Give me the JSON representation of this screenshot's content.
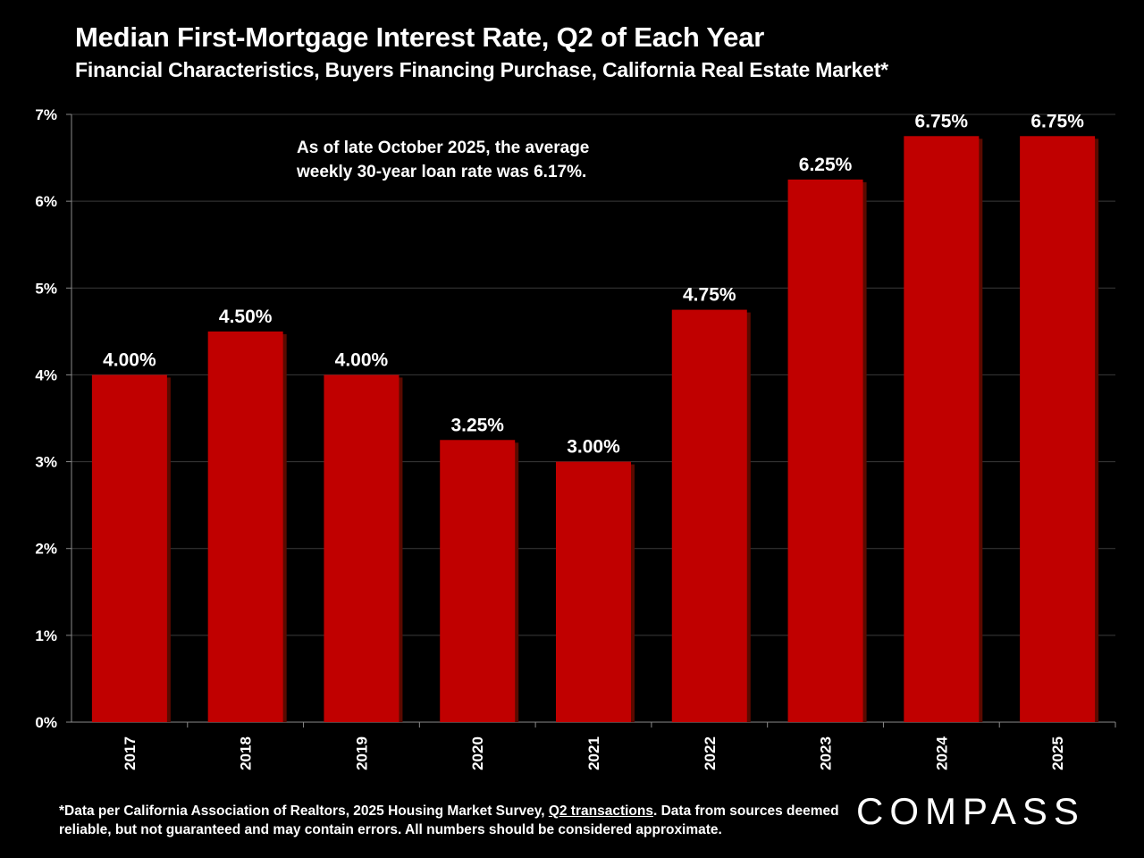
{
  "title": "Median First-Mortgage Interest Rate, Q2 of Each Year",
  "subtitle": "Financial Characteristics, Buyers Financing Purchase, California Real Estate Market*",
  "annotation": {
    "line1": "As of late October 2025, the average",
    "line2": "weekly 30-year loan rate was 6.17%."
  },
  "footnote": {
    "part1": "*Data per California Association of Realtors, 2025 Housing Market Survey, ",
    "link": "Q2 transactions",
    "part2": ". Data from sources deemed reliable, but not guaranteed and may contain errors. All numbers should be considered approximate."
  },
  "logo": "COMPASS",
  "colors": {
    "bar": "#c00000",
    "bar_shadow": "#5a0a00",
    "grid": "#3a3a3a",
    "text": "#ffffff",
    "background": "#000000"
  },
  "chart_data": {
    "type": "bar",
    "categories": [
      "2017",
      "2018",
      "2019",
      "2020",
      "2021",
      "2022",
      "2023",
      "2024",
      "2025"
    ],
    "values": [
      4.0,
      4.5,
      4.0,
      3.25,
      3.0,
      4.75,
      6.25,
      6.75,
      6.75
    ],
    "data_labels": [
      "4.00%",
      "4.50%",
      "4.00%",
      "3.25%",
      "3.00%",
      "4.75%",
      "6.25%",
      "6.75%",
      "6.75%"
    ],
    "ylim": [
      0,
      7
    ],
    "yticks": [
      0,
      1,
      2,
      3,
      4,
      5,
      6,
      7
    ],
    "ytick_labels": [
      "0%",
      "1%",
      "2%",
      "3%",
      "4%",
      "5%",
      "6%",
      "7%"
    ],
    "xlabel": "",
    "ylabel": "",
    "grid": true
  }
}
